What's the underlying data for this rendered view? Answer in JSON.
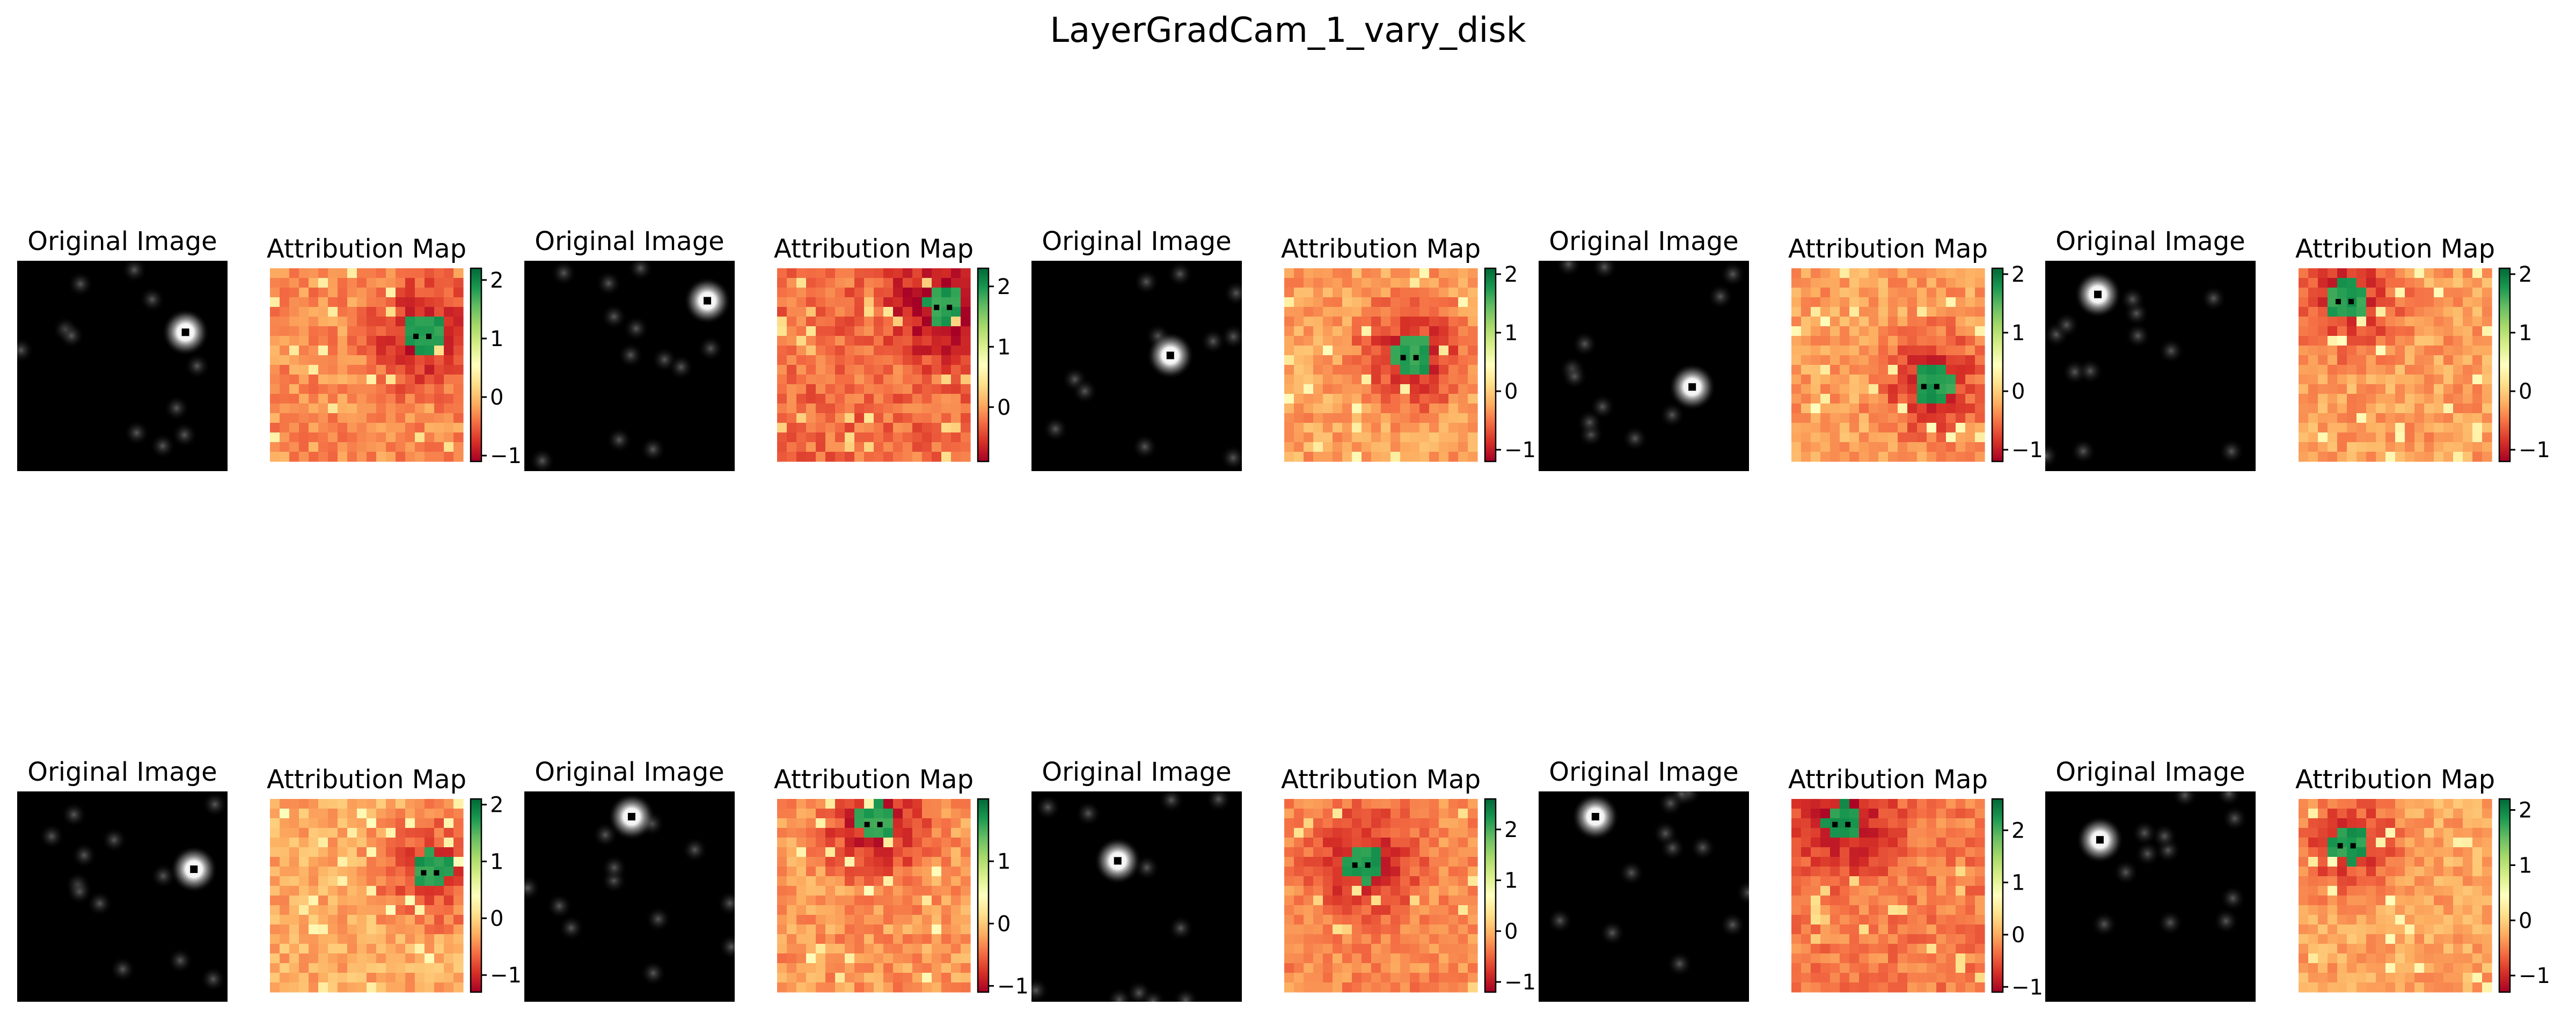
{
  "colors": {
    "background": "#ffffff",
    "original_background": "#000000",
    "attribution_colormap": [
      "#a50026",
      "#d73027",
      "#f46d43",
      "#fdae61",
      "#fee08b",
      "#ffffbf",
      "#d9ef8b",
      "#a6d96a",
      "#66bd63",
      "#1a9850",
      "#006837"
    ],
    "marker": "#000000"
  },
  "chart_data": {
    "type": "heatmap",
    "title": "LayerGradCam_1_vary_disk",
    "image_grid": {
      "rows": 2,
      "pairs_per_row": 5
    },
    "panel_titles": {
      "original": "Original Image",
      "attribution": "Attribution Map"
    },
    "pairs": [
      {
        "disk": [
          0.8,
          0.34
        ],
        "attr_peak": [
          0.8,
          0.34
        ],
        "attr_colorbar": {
          "vmin": -1.1,
          "vmax": 2.2,
          "ticks": [
            2,
            1,
            0,
            -1
          ]
        }
      },
      {
        "disk": [
          0.87,
          0.19
        ],
        "attr_peak": [
          0.87,
          0.19
        ],
        "attr_colorbar": {
          "vmin": -0.9,
          "vmax": 2.3,
          "ticks": [
            2,
            1,
            0
          ]
        }
      },
      {
        "disk": [
          0.66,
          0.45
        ],
        "attr_peak": [
          0.66,
          0.45
        ],
        "attr_colorbar": {
          "vmin": -1.2,
          "vmax": 2.1,
          "ticks": [
            2,
            1,
            0,
            -1
          ]
        }
      },
      {
        "disk": [
          0.73,
          0.6
        ],
        "attr_peak": [
          0.73,
          0.6
        ],
        "attr_colorbar": {
          "vmin": -1.2,
          "vmax": 2.1,
          "ticks": [
            2,
            1,
            0,
            -1
          ]
        }
      },
      {
        "disk": [
          0.25,
          0.16
        ],
        "attr_peak": [
          0.25,
          0.16
        ],
        "attr_colorbar": {
          "vmin": -1.2,
          "vmax": 2.1,
          "ticks": [
            2,
            1,
            0,
            -1
          ]
        }
      },
      {
        "disk": [
          0.84,
          0.37
        ],
        "attr_peak": [
          0.84,
          0.37
        ],
        "attr_colorbar": {
          "vmin": -1.3,
          "vmax": 2.1,
          "ticks": [
            2,
            1,
            0,
            -1
          ]
        }
      },
      {
        "disk": [
          0.51,
          0.12
        ],
        "attr_peak": [
          0.51,
          0.12
        ],
        "attr_colorbar": {
          "vmin": -1.1,
          "vmax": 2.0,
          "ticks": [
            1,
            0,
            -1
          ]
        }
      },
      {
        "disk": [
          0.41,
          0.33
        ],
        "attr_peak": [
          0.41,
          0.33
        ],
        "attr_colorbar": {
          "vmin": -1.2,
          "vmax": 2.6,
          "ticks": [
            2,
            1,
            0,
            -1
          ]
        }
      },
      {
        "disk": [
          0.27,
          0.12
        ],
        "attr_peak": [
          0.27,
          0.12
        ],
        "attr_colorbar": {
          "vmin": -1.1,
          "vmax": 2.6,
          "ticks": [
            2,
            1,
            0,
            -1
          ]
        }
      },
      {
        "disk": [
          0.26,
          0.23
        ],
        "attr_peak": [
          0.26,
          0.23
        ],
        "attr_colorbar": {
          "vmin": -1.3,
          "vmax": 2.2,
          "ticks": [
            2,
            1,
            0,
            -1
          ]
        }
      }
    ]
  }
}
